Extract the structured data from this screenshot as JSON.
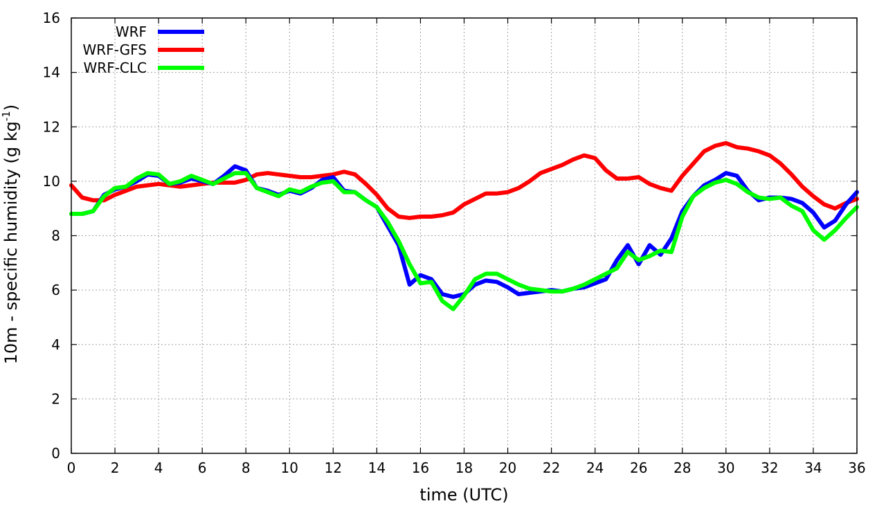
{
  "chart_data": {
    "type": "line",
    "xlabel": "time (UTC)",
    "ylabel": "10m - specific humidity (g kg",
    "ylabel_superscript": "-1",
    "ylabel_suffix": ")",
    "xlim": [
      0,
      36
    ],
    "ylim": [
      0,
      16
    ],
    "xticks": [
      "0",
      "2",
      "4",
      "6",
      "8",
      "10",
      "12",
      "14",
      "16",
      "18",
      "20",
      "22",
      "24",
      "26",
      "28",
      "30",
      "32",
      "34",
      "36"
    ],
    "yticks": [
      "0",
      "2",
      "4",
      "6",
      "8",
      "10",
      "12",
      "14",
      "16"
    ],
    "grid": true,
    "legend_position": "top-left",
    "series": [
      {
        "name": "WRF",
        "color": "#0000ff",
        "points": [
          [
            0,
            8.8
          ],
          [
            0.5,
            8.8
          ],
          [
            1,
            8.9
          ],
          [
            1.5,
            9.5
          ],
          [
            2,
            9.7
          ],
          [
            2.5,
            9.8
          ],
          [
            3,
            10.0
          ],
          [
            3.5,
            10.25
          ],
          [
            4,
            10.2
          ],
          [
            4.5,
            9.9
          ],
          [
            5,
            9.95
          ],
          [
            5.5,
            10.1
          ],
          [
            6,
            10.0
          ],
          [
            6.5,
            9.9
          ],
          [
            7,
            10.2
          ],
          [
            7.5,
            10.55
          ],
          [
            8,
            10.4
          ],
          [
            8.5,
            9.75
          ],
          [
            9,
            9.65
          ],
          [
            9.5,
            9.5
          ],
          [
            10,
            9.65
          ],
          [
            10.5,
            9.55
          ],
          [
            11,
            9.75
          ],
          [
            11.5,
            10.05
          ],
          [
            12,
            10.15
          ],
          [
            12.5,
            9.65
          ],
          [
            13,
            9.6
          ],
          [
            13.5,
            9.3
          ],
          [
            14,
            9.05
          ],
          [
            14.5,
            8.35
          ],
          [
            15,
            7.65
          ],
          [
            15.5,
            6.2
          ],
          [
            16,
            6.55
          ],
          [
            16.5,
            6.4
          ],
          [
            17,
            5.85
          ],
          [
            17.5,
            5.75
          ],
          [
            18,
            5.85
          ],
          [
            18.5,
            6.2
          ],
          [
            19,
            6.35
          ],
          [
            19.5,
            6.3
          ],
          [
            20,
            6.1
          ],
          [
            20.5,
            5.85
          ],
          [
            21,
            5.9
          ],
          [
            21.5,
            5.95
          ],
          [
            22,
            6.0
          ],
          [
            22.5,
            5.95
          ],
          [
            23,
            6.05
          ],
          [
            23.5,
            6.1
          ],
          [
            24,
            6.25
          ],
          [
            24.5,
            6.4
          ],
          [
            25,
            7.1
          ],
          [
            25.5,
            7.65
          ],
          [
            26,
            6.95
          ],
          [
            26.5,
            7.65
          ],
          [
            27,
            7.3
          ],
          [
            27.5,
            7.9
          ],
          [
            28,
            8.9
          ],
          [
            28.5,
            9.45
          ],
          [
            29,
            9.85
          ],
          [
            29.5,
            10.05
          ],
          [
            30,
            10.3
          ],
          [
            30.5,
            10.2
          ],
          [
            31,
            9.65
          ],
          [
            31.5,
            9.3
          ],
          [
            32,
            9.4
          ],
          [
            32.5,
            9.4
          ],
          [
            33,
            9.35
          ],
          [
            33.5,
            9.2
          ],
          [
            34,
            8.85
          ],
          [
            34.5,
            8.3
          ],
          [
            35,
            8.55
          ],
          [
            35.5,
            9.15
          ],
          [
            36,
            9.6
          ]
        ]
      },
      {
        "name": "WRF-GFS",
        "color": "#ff0000",
        "points": [
          [
            0,
            9.85
          ],
          [
            0.5,
            9.4
          ],
          [
            1,
            9.3
          ],
          [
            1.5,
            9.3
          ],
          [
            2,
            9.5
          ],
          [
            2.5,
            9.65
          ],
          [
            3,
            9.8
          ],
          [
            3.5,
            9.85
          ],
          [
            4,
            9.9
          ],
          [
            4.5,
            9.85
          ],
          [
            5,
            9.8
          ],
          [
            5.5,
            9.85
          ],
          [
            6,
            9.9
          ],
          [
            6.5,
            9.95
          ],
          [
            7,
            9.95
          ],
          [
            7.5,
            9.95
          ],
          [
            8,
            10.05
          ],
          [
            8.5,
            10.25
          ],
          [
            9,
            10.3
          ],
          [
            9.5,
            10.25
          ],
          [
            10,
            10.2
          ],
          [
            10.5,
            10.15
          ],
          [
            11,
            10.15
          ],
          [
            11.5,
            10.2
          ],
          [
            12,
            10.25
          ],
          [
            12.5,
            10.35
          ],
          [
            13,
            10.25
          ],
          [
            13.5,
            9.9
          ],
          [
            14,
            9.5
          ],
          [
            14.5,
            9.0
          ],
          [
            15,
            8.7
          ],
          [
            15.5,
            8.65
          ],
          [
            16,
            8.7
          ],
          [
            16.5,
            8.7
          ],
          [
            17,
            8.75
          ],
          [
            17.5,
            8.85
          ],
          [
            18,
            9.15
          ],
          [
            18.5,
            9.35
          ],
          [
            19,
            9.55
          ],
          [
            19.5,
            9.55
          ],
          [
            20,
            9.6
          ],
          [
            20.5,
            9.75
          ],
          [
            21,
            10.0
          ],
          [
            21.5,
            10.3
          ],
          [
            22,
            10.45
          ],
          [
            22.5,
            10.6
          ],
          [
            23,
            10.8
          ],
          [
            23.5,
            10.95
          ],
          [
            24,
            10.85
          ],
          [
            24.5,
            10.4
          ],
          [
            25,
            10.1
          ],
          [
            25.5,
            10.1
          ],
          [
            26,
            10.15
          ],
          [
            26.5,
            9.9
          ],
          [
            27,
            9.75
          ],
          [
            27.5,
            9.65
          ],
          [
            28,
            10.2
          ],
          [
            28.5,
            10.65
          ],
          [
            29,
            11.1
          ],
          [
            29.5,
            11.3
          ],
          [
            30,
            11.4
          ],
          [
            30.5,
            11.25
          ],
          [
            31,
            11.2
          ],
          [
            31.5,
            11.1
          ],
          [
            32,
            10.95
          ],
          [
            32.5,
            10.65
          ],
          [
            33,
            10.25
          ],
          [
            33.5,
            9.8
          ],
          [
            34,
            9.45
          ],
          [
            34.5,
            9.15
          ],
          [
            35,
            9.0
          ],
          [
            35.5,
            9.2
          ],
          [
            36,
            9.35
          ]
        ]
      },
      {
        "name": "WRF-CLC",
        "color": "#00ff00",
        "points": [
          [
            0,
            8.8
          ],
          [
            0.5,
            8.8
          ],
          [
            1,
            8.9
          ],
          [
            1.5,
            9.45
          ],
          [
            2,
            9.75
          ],
          [
            2.5,
            9.8
          ],
          [
            3,
            10.1
          ],
          [
            3.5,
            10.3
          ],
          [
            4,
            10.25
          ],
          [
            4.5,
            9.9
          ],
          [
            5,
            10.0
          ],
          [
            5.5,
            10.2
          ],
          [
            6,
            10.05
          ],
          [
            6.5,
            9.9
          ],
          [
            7,
            10.1
          ],
          [
            7.5,
            10.3
          ],
          [
            8,
            10.3
          ],
          [
            8.5,
            9.75
          ],
          [
            9,
            9.6
          ],
          [
            9.5,
            9.45
          ],
          [
            10,
            9.7
          ],
          [
            10.5,
            9.6
          ],
          [
            11,
            9.8
          ],
          [
            11.5,
            9.95
          ],
          [
            12,
            10.0
          ],
          [
            12.5,
            9.6
          ],
          [
            13,
            9.6
          ],
          [
            13.5,
            9.3
          ],
          [
            14,
            9.05
          ],
          [
            14.5,
            8.5
          ],
          [
            15,
            7.8
          ],
          [
            15.5,
            6.95
          ],
          [
            16,
            6.25
          ],
          [
            16.5,
            6.3
          ],
          [
            17,
            5.6
          ],
          [
            17.5,
            5.3
          ],
          [
            18,
            5.8
          ],
          [
            18.5,
            6.4
          ],
          [
            19,
            6.6
          ],
          [
            19.5,
            6.6
          ],
          [
            20,
            6.4
          ],
          [
            20.5,
            6.2
          ],
          [
            21,
            6.05
          ],
          [
            21.5,
            6.0
          ],
          [
            22,
            5.95
          ],
          [
            22.5,
            5.95
          ],
          [
            23,
            6.05
          ],
          [
            23.5,
            6.2
          ],
          [
            24,
            6.4
          ],
          [
            24.5,
            6.6
          ],
          [
            25,
            6.8
          ],
          [
            25.5,
            7.4
          ],
          [
            26,
            7.1
          ],
          [
            26.5,
            7.25
          ],
          [
            27,
            7.45
          ],
          [
            27.5,
            7.4
          ],
          [
            28,
            8.7
          ],
          [
            28.5,
            9.45
          ],
          [
            29,
            9.75
          ],
          [
            29.5,
            9.95
          ],
          [
            30,
            10.05
          ],
          [
            30.5,
            9.9
          ],
          [
            31,
            9.6
          ],
          [
            31.5,
            9.4
          ],
          [
            32,
            9.35
          ],
          [
            32.5,
            9.4
          ],
          [
            33,
            9.1
          ],
          [
            33.5,
            8.9
          ],
          [
            34,
            8.2
          ],
          [
            34.5,
            7.85
          ],
          [
            35,
            8.2
          ],
          [
            35.5,
            8.65
          ],
          [
            36,
            9.05
          ]
        ]
      }
    ]
  }
}
